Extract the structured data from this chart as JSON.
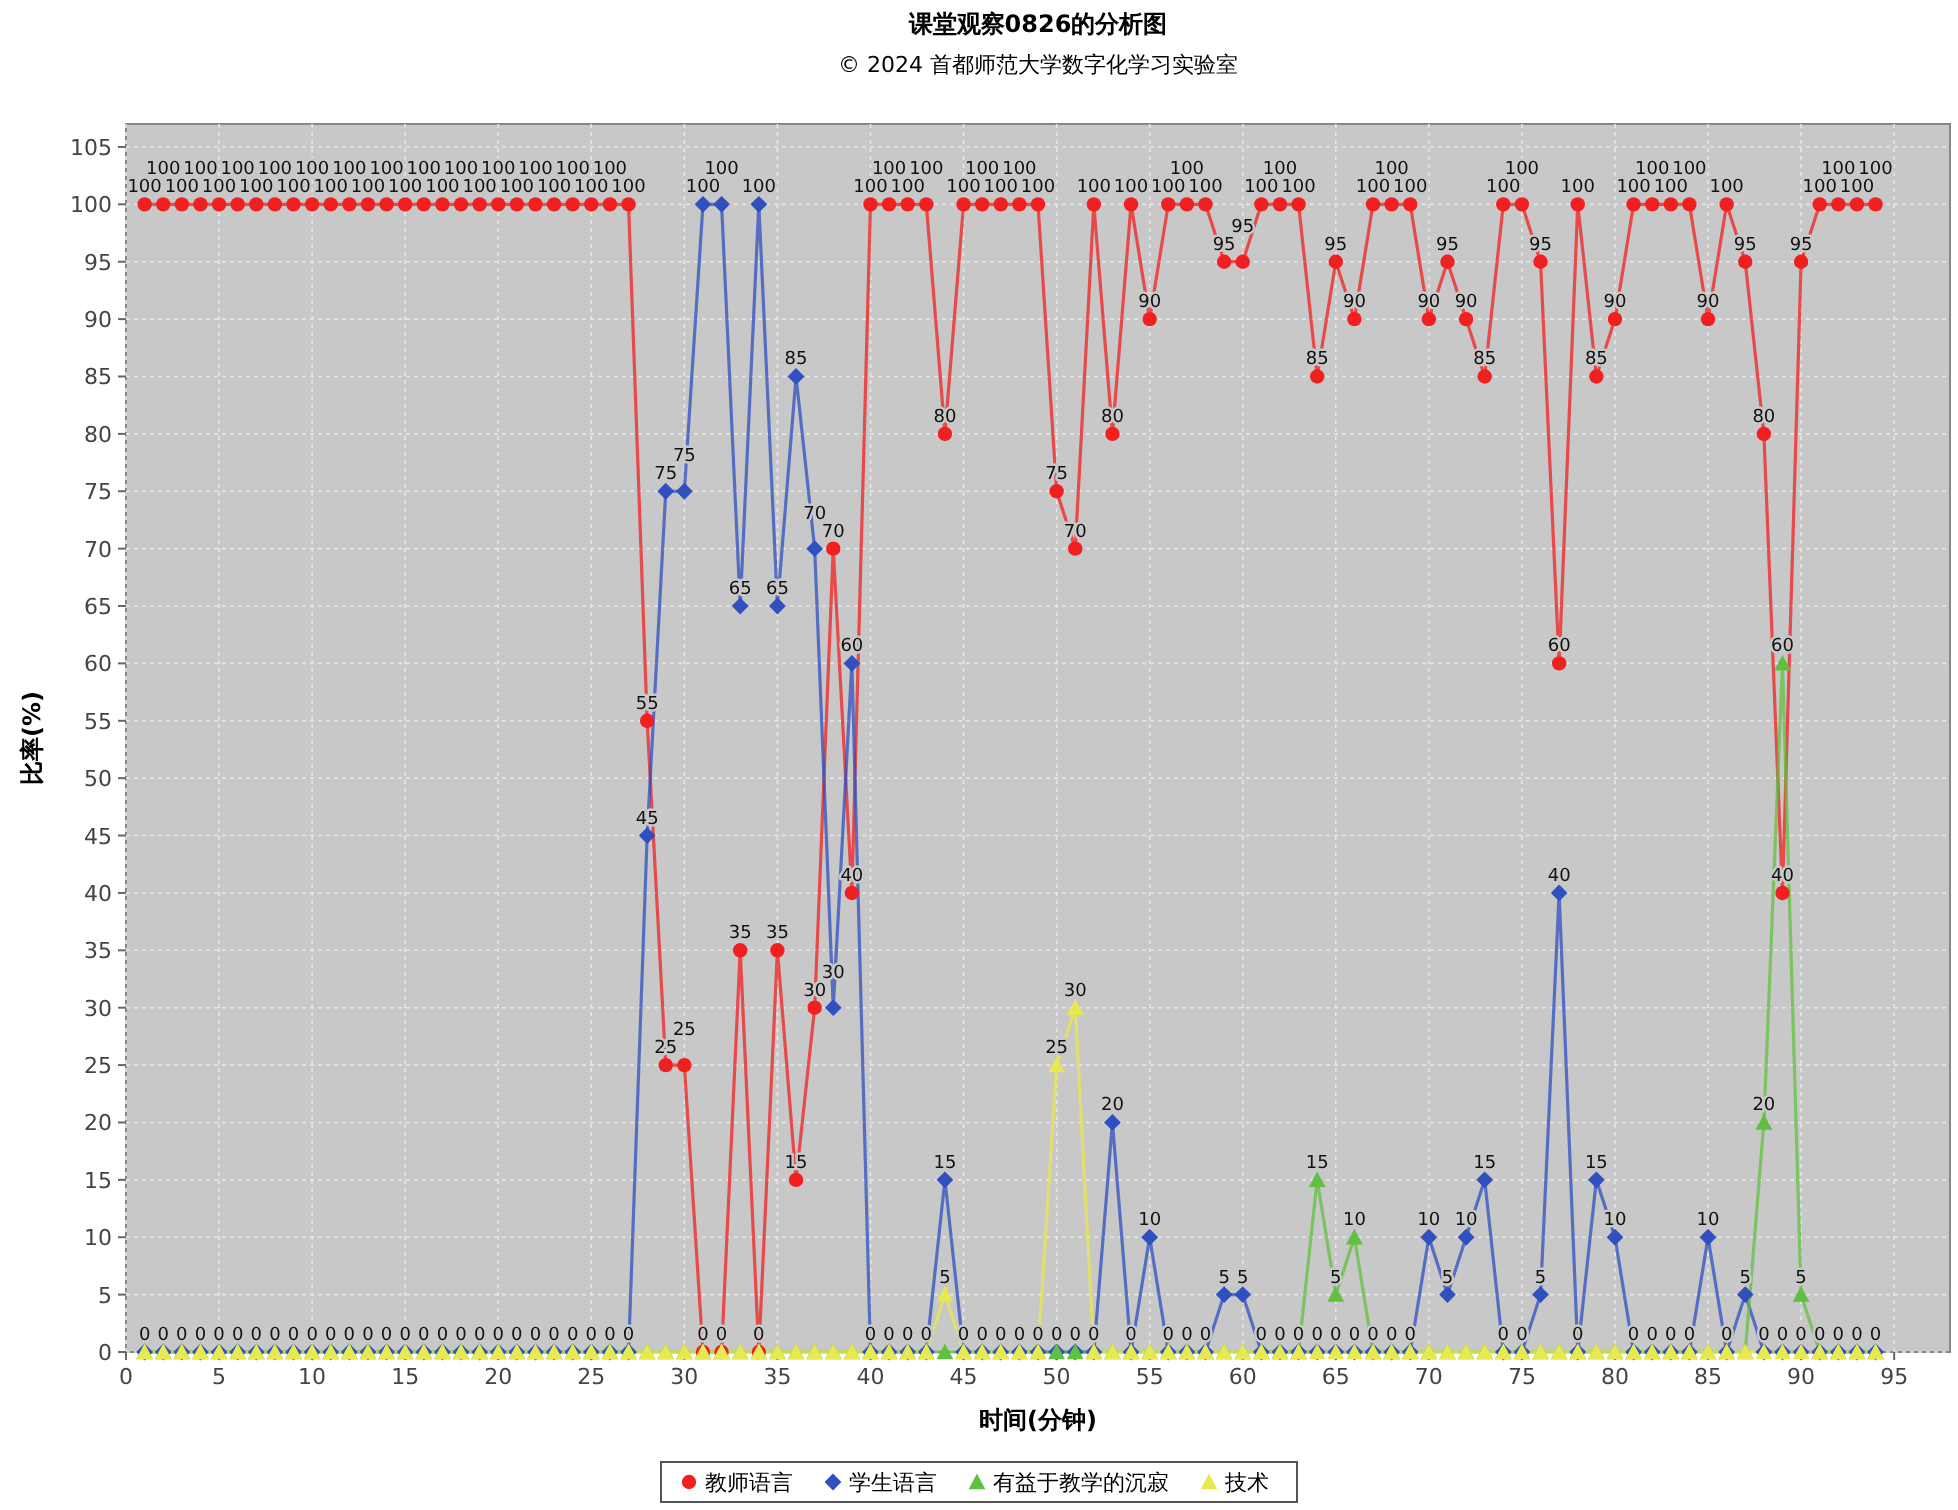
{
  "chart_data": {
    "type": "line",
    "title": "课堂观察0826的分析图",
    "subtitle": "© 2024 首都师范大学数字化学习实验室",
    "xlabel": "时间(分钟)",
    "ylabel": "比率(%)",
    "x": [
      1,
      2,
      3,
      4,
      5,
      6,
      7,
      8,
      9,
      10,
      11,
      12,
      13,
      14,
      15,
      16,
      17,
      18,
      19,
      20,
      21,
      22,
      23,
      24,
      25,
      26,
      27,
      28,
      29,
      30,
      31,
      32,
      33,
      34,
      35,
      36,
      37,
      38,
      39,
      40,
      41,
      42,
      43,
      44,
      45,
      46,
      47,
      48,
      49,
      50,
      51,
      52,
      53,
      54,
      55,
      56,
      57,
      58,
      59,
      60,
      61,
      62,
      63,
      64,
      65,
      66,
      67,
      68,
      69,
      70,
      71,
      72,
      73,
      74,
      75,
      76,
      77,
      78,
      79,
      80,
      81,
      82,
      83,
      84,
      85,
      86,
      87,
      88,
      89,
      90,
      91,
      92,
      93,
      94
    ],
    "series": [
      {
        "name": "教师语言",
        "color": "#f02020",
        "marker": "circle",
        "values": [
          100,
          100,
          100,
          100,
          100,
          100,
          100,
          100,
          100,
          100,
          100,
          100,
          100,
          100,
          100,
          100,
          100,
          100,
          100,
          100,
          100,
          100,
          100,
          100,
          100,
          100,
          100,
          55,
          25,
          25,
          0,
          0,
          35,
          0,
          35,
          15,
          30,
          70,
          40,
          100,
          100,
          100,
          100,
          80,
          100,
          100,
          100,
          100,
          100,
          75,
          70,
          100,
          80,
          100,
          90,
          100,
          100,
          100,
          95,
          95,
          100,
          100,
          100,
          85,
          95,
          90,
          100,
          100,
          100,
          90,
          95,
          90,
          85,
          100,
          100,
          95,
          60,
          100,
          85,
          90,
          100,
          100,
          100,
          100,
          90,
          100,
          95,
          80,
          40,
          95,
          100,
          100,
          100,
          100
        ],
        "value_labels": [
          "100",
          "100",
          "100",
          "100",
          "100",
          "100",
          "100",
          "100",
          "100",
          "100",
          "100",
          "100",
          "100",
          "100",
          "100",
          "100",
          "100",
          "100",
          "100",
          "100",
          "100",
          "100",
          "100",
          "100",
          "100",
          "100",
          "100",
          "55",
          "25",
          "25",
          "0",
          "0",
          "35",
          "0",
          "35",
          "15",
          "30",
          "70",
          "40",
          "100",
          "100",
          "100",
          "100",
          "80",
          "100",
          "100",
          "100",
          "100",
          "100",
          "75",
          "70",
          "100",
          "80",
          "100",
          "90",
          "100",
          "100",
          "100",
          "95",
          "95",
          "100",
          "100",
          "100",
          "85",
          "95",
          "90",
          "100",
          "100",
          "100",
          "90",
          "95",
          "90",
          "85",
          "100",
          "100",
          "95",
          "60",
          "100",
          "85",
          "90",
          "100",
          "100",
          "100",
          "100",
          "90",
          "100",
          "95",
          "80",
          "40",
          "95",
          "100",
          "100",
          "100",
          "100"
        ]
      },
      {
        "name": "学生语言",
        "color": "#3050c0",
        "marker": "diamond",
        "values": [
          0,
          0,
          0,
          0,
          0,
          0,
          0,
          0,
          0,
          0,
          0,
          0,
          0,
          0,
          0,
          0,
          0,
          0,
          0,
          0,
          0,
          0,
          0,
          0,
          0,
          0,
          0,
          45,
          75,
          75,
          100,
          100,
          65,
          100,
          65,
          85,
          70,
          30,
          60,
          0,
          0,
          0,
          0,
          15,
          0,
          0,
          0,
          0,
          0,
          0,
          0,
          0,
          20,
          0,
          10,
          0,
          0,
          0,
          5,
          5,
          0,
          0,
          0,
          0,
          0,
          0,
          0,
          0,
          0,
          10,
          5,
          10,
          15,
          0,
          0,
          5,
          40,
          0,
          15,
          10,
          0,
          0,
          0,
          0,
          10,
          0,
          5,
          0,
          0,
          0,
          0,
          0,
          0,
          0
        ],
        "value_labels": [
          "0",
          "0",
          "0",
          "0",
          "0",
          "0",
          "0",
          "0",
          "0",
          "0",
          "0",
          "0",
          "0",
          "0",
          "0",
          "0",
          "0",
          "0",
          "0",
          "0",
          "0",
          "0",
          "0",
          "0",
          "0",
          "0",
          "0",
          "45",
          "75",
          "75",
          "100",
          "100",
          "65",
          "100",
          "65",
          "85",
          "70",
          "30",
          "60",
          "0",
          "0",
          "0",
          "0",
          "15",
          "0",
          "0",
          "0",
          "0",
          "0",
          "0",
          "0",
          "0",
          "20",
          "0",
          "10",
          "0",
          "0",
          "0",
          "5",
          "5",
          "0",
          "0",
          "0",
          "0",
          "0",
          "0",
          "0",
          "0",
          "0",
          "10",
          "5",
          "10",
          "15",
          "0",
          "0",
          "5",
          "40",
          "0",
          "15",
          "10",
          "0",
          "0",
          "0",
          "0",
          "10",
          "0",
          "5",
          "0",
          "0",
          "0",
          "0",
          "0",
          "0",
          "0"
        ]
      },
      {
        "name": "有益于教学的沉寂",
        "color": "#60c040",
        "marker": "triangle",
        "values": [
          0,
          0,
          0,
          0,
          0,
          0,
          0,
          0,
          0,
          0,
          0,
          0,
          0,
          0,
          0,
          0,
          0,
          0,
          0,
          0,
          0,
          0,
          0,
          0,
          0,
          0,
          0,
          0,
          0,
          0,
          0,
          0,
          0,
          0,
          0,
          0,
          0,
          0,
          0,
          0,
          0,
          0,
          0,
          0,
          0,
          0,
          0,
          0,
          0,
          0,
          0,
          0,
          0,
          0,
          0,
          0,
          0,
          0,
          0,
          0,
          0,
          0,
          0,
          15,
          5,
          10,
          0,
          0,
          0,
          0,
          0,
          0,
          0,
          0,
          0,
          0,
          0,
          0,
          0,
          0,
          0,
          0,
          0,
          0,
          0,
          0,
          0,
          20,
          60,
          5,
          0,
          0,
          0,
          0
        ],
        "value_labels": [
          null,
          null,
          null,
          null,
          null,
          null,
          null,
          null,
          null,
          null,
          null,
          null,
          null,
          null,
          null,
          null,
          null,
          null,
          null,
          null,
          null,
          null,
          null,
          null,
          null,
          null,
          null,
          null,
          null,
          null,
          null,
          null,
          null,
          null,
          null,
          null,
          null,
          null,
          null,
          null,
          null,
          null,
          null,
          null,
          null,
          null,
          null,
          null,
          null,
          null,
          null,
          null,
          null,
          null,
          null,
          null,
          null,
          null,
          null,
          null,
          null,
          null,
          null,
          "15",
          "5",
          "10",
          null,
          null,
          null,
          null,
          null,
          null,
          null,
          null,
          null,
          null,
          null,
          null,
          null,
          null,
          null,
          null,
          null,
          null,
          null,
          null,
          null,
          "20",
          "60",
          "5",
          null,
          null,
          null,
          null
        ]
      },
      {
        "name": "技术",
        "color": "#e8e850",
        "marker": "triangle",
        "values": [
          0,
          0,
          0,
          0,
          0,
          0,
          0,
          0,
          0,
          0,
          0,
          0,
          0,
          0,
          0,
          0,
          0,
          0,
          0,
          0,
          0,
          0,
          0,
          0,
          0,
          0,
          0,
          0,
          0,
          0,
          0,
          0,
          0,
          0,
          0,
          0,
          0,
          0,
          0,
          0,
          0,
          0,
          0,
          5,
          0,
          0,
          0,
          0,
          0,
          25,
          30,
          0,
          0,
          0,
          0,
          0,
          0,
          0,
          0,
          0,
          0,
          0,
          0,
          0,
          0,
          0,
          0,
          0,
          0,
          0,
          0,
          0,
          0,
          0,
          0,
          0,
          0,
          0,
          0,
          0,
          0,
          0,
          0,
          0,
          0,
          0,
          0,
          0,
          0,
          0,
          0,
          0,
          0,
          0
        ],
        "value_labels": [
          null,
          null,
          null,
          null,
          null,
          null,
          null,
          null,
          null,
          null,
          null,
          null,
          null,
          null,
          null,
          null,
          null,
          null,
          null,
          null,
          null,
          null,
          null,
          null,
          null,
          null,
          null,
          null,
          null,
          null,
          null,
          null,
          null,
          null,
          null,
          null,
          null,
          null,
          null,
          null,
          null,
          null,
          null,
          "5",
          null,
          null,
          null,
          null,
          null,
          "25",
          "30",
          null,
          null,
          null,
          null,
          null,
          null,
          null,
          null,
          null,
          null,
          null,
          null,
          null,
          null,
          null,
          null,
          null,
          null,
          null,
          null,
          null,
          null,
          null,
          null,
          null,
          null,
          null,
          null,
          null,
          null,
          null,
          null,
          null,
          null,
          null,
          null,
          null,
          null,
          null,
          null,
          null,
          null,
          null
        ]
      }
    ],
    "xlim": [
      0,
      98
    ],
    "xticks": [
      0,
      5,
      10,
      15,
      20,
      25,
      30,
      35,
      40,
      45,
      50,
      55,
      60,
      65,
      70,
      75,
      80,
      85,
      90,
      95
    ],
    "ylim": [
      0,
      107
    ],
    "yticks": [
      0,
      5,
      10,
      15,
      20,
      25,
      30,
      35,
      40,
      45,
      50,
      55,
      60,
      65,
      70,
      75,
      80,
      85,
      90,
      95,
      100,
      105
    ],
    "grid": true,
    "legend": "bottom",
    "line_style": "solid"
  }
}
